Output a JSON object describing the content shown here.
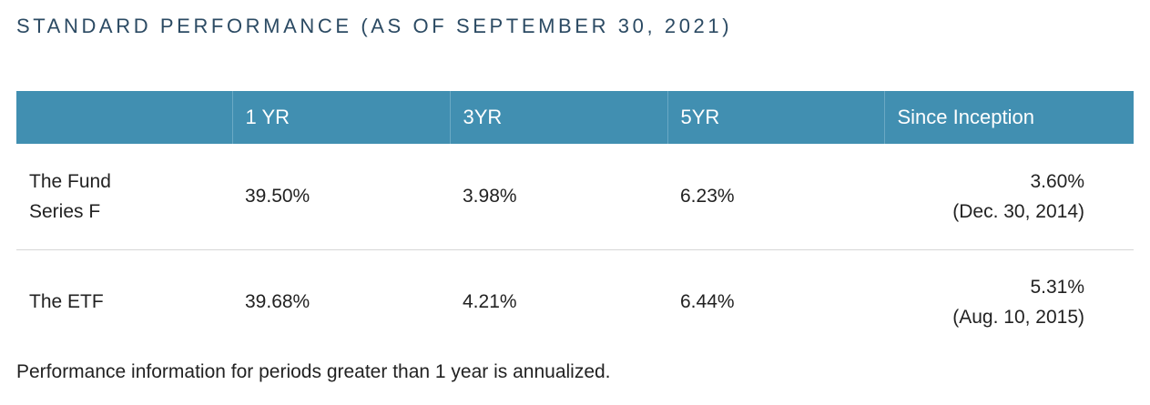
{
  "title": "STANDARD PERFORMANCE (AS OF SEPTEMBER 30, 2021)",
  "table": {
    "headers": [
      "",
      "1 YR",
      "3YR",
      "5YR",
      "Since Inception"
    ],
    "rows": [
      {
        "name_line1": "The Fund",
        "name_line2": "Series F",
        "one_yr": "39.50%",
        "three_yr": "3.98%",
        "five_yr": "6.23%",
        "since_inception": "3.60%",
        "inception_date": "(Dec. 30, 2014)"
      },
      {
        "name_line1": "The ETF",
        "name_line2": "",
        "one_yr": "39.68%",
        "three_yr": "4.21%",
        "five_yr": "6.44%",
        "since_inception": "5.31%",
        "inception_date": "(Aug. 10, 2015)"
      }
    ]
  },
  "footnote": "Performance information for periods greater than 1 year is annualized.",
  "colors": {
    "header_background": "#418fb1",
    "header_text": "#ffffff",
    "title_text": "#2b4a63",
    "row_divider": "#d6d6d6"
  }
}
